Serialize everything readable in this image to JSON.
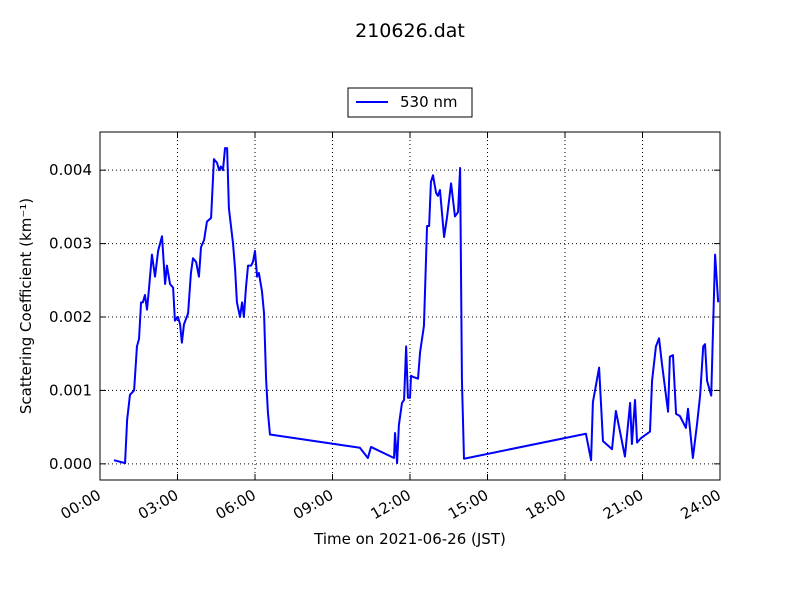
{
  "chart_data": {
    "type": "line",
    "title": "210626.dat",
    "xlabel": "Time on 2021-06-26 (JST)",
    "ylabel": "Scattering Coefficient (km⁻¹)",
    "x": [
      0.54,
      0.97,
      1.05,
      1.16,
      1.32,
      1.43,
      1.51,
      1.59,
      1.66,
      1.74,
      1.82,
      1.9,
      2.01,
      2.13,
      2.25,
      2.4,
      2.52,
      2.59,
      2.71,
      2.83,
      2.9,
      3.02,
      3.1,
      3.17,
      3.25,
      3.41,
      3.52,
      3.6,
      3.72,
      3.83,
      3.91,
      4.03,
      4.14,
      4.3,
      4.41,
      4.53,
      4.61,
      4.68,
      4.76,
      4.84,
      4.92,
      4.99,
      5.15,
      5.23,
      5.3,
      5.42,
      5.5,
      5.57,
      5.65,
      5.73,
      5.85,
      5.92,
      6.0,
      6.08,
      6.15,
      6.27,
      6.35,
      6.43,
      6.5,
      6.58,
      10.06,
      10.37,
      10.49,
      11.26,
      11.38,
      11.42,
      11.5,
      11.57,
      11.69,
      11.77,
      11.85,
      11.92,
      12.0,
      12.04,
      12.15,
      12.31,
      12.39,
      12.54,
      12.66,
      12.74,
      12.81,
      12.89,
      13.01,
      13.08,
      13.16,
      13.32,
      13.43,
      13.59,
      13.74,
      13.86,
      13.94,
      14.01,
      14.09,
      18.81,
      19.01,
      19.08,
      19.32,
      19.47,
      19.82,
      19.97,
      20.32,
      20.52,
      20.59,
      20.71,
      20.79,
      20.94,
      21.29,
      21.37,
      21.52,
      21.64,
      21.75,
      21.99,
      22.06,
      22.18,
      22.3,
      22.45,
      22.68,
      22.76,
      22.95,
      23.11,
      23.23,
      23.35,
      23.42,
      23.5,
      23.66,
      23.81,
      23.93
    ],
    "series": [
      {
        "name": "530 nm",
        "color": "#0000ff",
        "values": [
          5e-05,
          1e-05,
          0.0006,
          0.00094,
          0.001,
          0.0016,
          0.0017,
          0.0022,
          0.0022,
          0.0023,
          0.0021,
          0.0024,
          0.00285,
          0.00255,
          0.0029,
          0.0031,
          0.00245,
          0.0027,
          0.00245,
          0.0024,
          0.00195,
          0.002,
          0.0019,
          0.00165,
          0.0019,
          0.00205,
          0.0026,
          0.0028,
          0.00275,
          0.00255,
          0.00295,
          0.00305,
          0.0033,
          0.00335,
          0.00415,
          0.0041,
          0.004,
          0.00405,
          0.004,
          0.0043,
          0.0043,
          0.00348,
          0.003,
          0.00265,
          0.0022,
          0.002,
          0.0022,
          0.002,
          0.0024,
          0.0027,
          0.0027,
          0.00275,
          0.0029,
          0.00255,
          0.0026,
          0.00235,
          0.00205,
          0.00115,
          0.0007,
          0.0004,
          0.00022,
          8e-05,
          0.00023,
          0.0001,
          8e-05,
          0.00042,
          1e-05,
          0.00053,
          0.00083,
          0.00087,
          0.0016,
          0.0009,
          0.0009,
          0.0012,
          0.00118,
          0.00116,
          0.00152,
          0.00188,
          0.00324,
          0.00324,
          0.00384,
          0.00393,
          0.00369,
          0.00365,
          0.00373,
          0.00309,
          0.00335,
          0.00382,
          0.00337,
          0.00343,
          0.00403,
          0.00114,
          7e-05,
          0.00041,
          5e-05,
          0.00084,
          0.00131,
          0.00031,
          0.0002,
          0.00072,
          0.0001,
          0.00083,
          0.00027,
          0.00087,
          0.00029,
          0.00035,
          0.00044,
          0.00113,
          0.0016,
          0.00171,
          0.00137,
          0.00071,
          0.00146,
          0.00148,
          0.00068,
          0.00065,
          0.00049,
          0.00075,
          8e-05,
          0.00054,
          0.00093,
          0.0016,
          0.00163,
          0.00113,
          0.00093,
          0.00285,
          0.0022
        ]
      }
    ],
    "xlim": [
      0,
      24
    ],
    "xticks": [
      {
        "value": 0,
        "label": "00:00"
      },
      {
        "value": 3,
        "label": "03:00"
      },
      {
        "value": 6,
        "label": "06:00"
      },
      {
        "value": 9,
        "label": "09:00"
      },
      {
        "value": 12,
        "label": "12:00"
      },
      {
        "value": 15,
        "label": "15:00"
      },
      {
        "value": 18,
        "label": "18:00"
      },
      {
        "value": 21,
        "label": "21:00"
      },
      {
        "value": 24,
        "label": "24:00"
      }
    ],
    "ylim": [
      -0.00022,
      0.00452
    ],
    "yticks": [
      {
        "value": 0,
        "label": "0.000"
      },
      0.001,
      0.002,
      0.003,
      0.004
    ],
    "grid": true,
    "legend": "top"
  }
}
